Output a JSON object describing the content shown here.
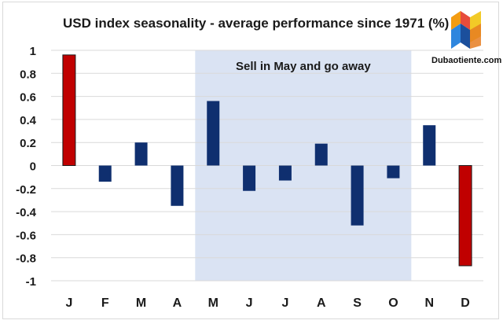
{
  "title": "USD index seasonality - average performance since 1971 (%)",
  "watermark": {
    "text": "Dubaotiente.com",
    "icon": "dubaotiente-logo-icon"
  },
  "colors": {
    "negative_edge_bar": "#c00000",
    "bar": "#0f2f6f",
    "shaded_region": "#dae3f3",
    "grid": "#d9d9d9"
  },
  "chart_data": {
    "type": "bar",
    "title": "USD index seasonality - average performance since 1971 (%)",
    "categories": [
      "J",
      "F",
      "M",
      "A",
      "M",
      "J",
      "J",
      "A",
      "S",
      "O",
      "N",
      "D"
    ],
    "values": [
      0.96,
      -0.14,
      0.2,
      -0.35,
      0.56,
      -0.22,
      -0.13,
      0.19,
      -0.52,
      -0.11,
      0.35,
      -0.87
    ],
    "highlighted_categories": [
      0,
      11
    ],
    "ylim": [
      -1,
      1
    ],
    "yticks": [
      "1",
      "0.8",
      "0.6",
      "0.4",
      "0.2",
      "0",
      "-0.2",
      "-0.4",
      "-0.6",
      "-0.8",
      "-1"
    ],
    "ytick_values": [
      1,
      0.8,
      0.6,
      0.4,
      0.2,
      0,
      -0.2,
      -0.4,
      -0.6,
      -0.8,
      -1
    ],
    "grid": true,
    "annotation": {
      "text": "Sell in May and go away",
      "from_category": 4,
      "to_category": 9
    }
  }
}
